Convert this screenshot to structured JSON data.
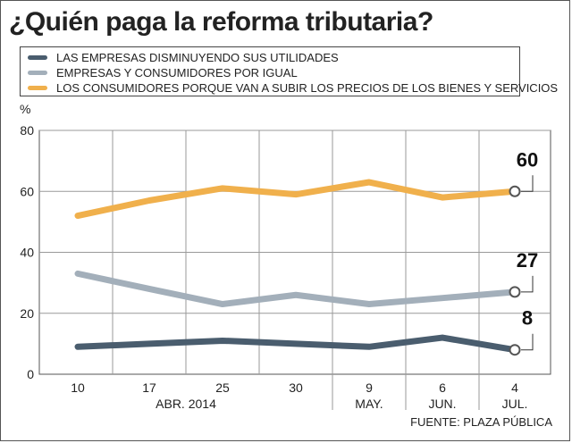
{
  "title": "¿Quién paga la reforma tributaria?",
  "source": "FUENTE: PLAZA PÚBLICA",
  "y_unit": "%",
  "chart_data": {
    "type": "line",
    "title": "¿Quién paga la reforma tributaria?",
    "ylabel": "%",
    "ylim": [
      0,
      80
    ],
    "yticks": [
      0,
      20,
      40,
      60,
      80
    ],
    "grid": true,
    "legend_position": "top",
    "categories": [
      "10",
      "17",
      "25",
      "30",
      "9",
      "6",
      "4"
    ],
    "month_labels": [
      "ABR. 2014",
      "MAY.",
      "JUN.",
      "JUL."
    ],
    "series": [
      {
        "name": "LAS EMPRESAS DISMINUYENDO SUS UTILIDADES",
        "color": "#4a5d6e",
        "values": [
          9,
          10,
          11,
          10,
          9,
          12,
          8
        ],
        "end_label": "8"
      },
      {
        "name": "EMPRESAS Y CONSUMIDORES POR IGUAL",
        "color": "#a3afba",
        "values": [
          33,
          28,
          23,
          26,
          23,
          25,
          27
        ],
        "end_label": "27"
      },
      {
        "name": "LOS CONSUMIDORES PORQUE VAN A SUBIR LOS PRECIOS DE LOS BIENES Y SERVICIOS",
        "color": "#f0b04c",
        "values": [
          52,
          57,
          61,
          59,
          63,
          58,
          60
        ],
        "end_label": "60"
      }
    ]
  }
}
